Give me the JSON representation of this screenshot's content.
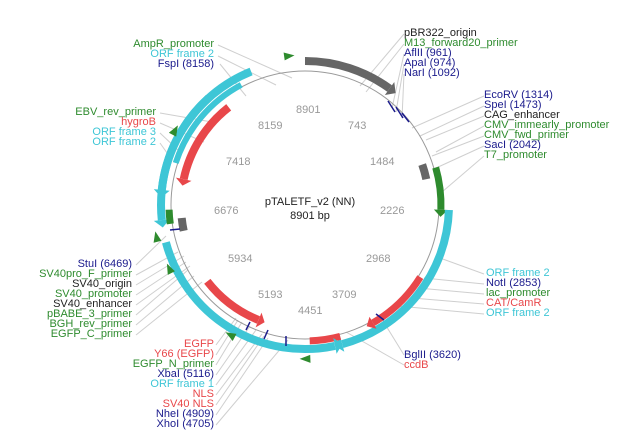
{
  "plasmid": {
    "name": "pTALETF_v2 (NN)",
    "length_label": "8901 bp",
    "total_bp": 8901
  },
  "colors": {
    "enzyme": "#1a1a8c",
    "primer": "#2e8b2e",
    "promoter": "#2e8b2e",
    "orf": "#3ec6d6",
    "gene": "#e8474a",
    "origin": "#222222",
    "tick": "#999999"
  },
  "ticks": [
    "743",
    "1484",
    "2226",
    "2968",
    "3709",
    "4451",
    "5193",
    "5934",
    "6676",
    "7418",
    "8159",
    "8901"
  ],
  "labels_top_left": [
    {
      "text": "AmpR_promoter",
      "kind": "promoter"
    },
    {
      "text": "ORF frame 2",
      "kind": "orf"
    },
    {
      "text": "FspI (8158)",
      "kind": "enzyme"
    }
  ],
  "labels_top_right": [
    {
      "text": "pBR322_origin",
      "kind": "origin"
    },
    {
      "text": "M13_forward20_primer",
      "kind": "primer"
    },
    {
      "text": "AflII (961)",
      "kind": "enzyme"
    },
    {
      "text": "ApaI (974)",
      "kind": "enzyme"
    },
    {
      "text": "NarI (1092)",
      "kind": "enzyme"
    }
  ],
  "labels_right": [
    {
      "text": "EcoRV (1314)",
      "kind": "enzyme"
    },
    {
      "text": "SpeI (1473)",
      "kind": "enzyme"
    },
    {
      "text": "CAG_enhancer",
      "kind": "origin"
    },
    {
      "text": "CMV_immearly_promoter",
      "kind": "promoter"
    },
    {
      "text": "CMV_fwd_primer",
      "kind": "primer"
    },
    {
      "text": "SacI (2042)",
      "kind": "enzyme"
    },
    {
      "text": "T7_promoter",
      "kind": "promoter"
    }
  ],
  "labels_left_upper": [
    {
      "text": "EBV_rev_primer",
      "kind": "primer"
    },
    {
      "text": "hygroB",
      "kind": "gene"
    },
    {
      "text": "ORF frame 3",
      "kind": "orf"
    },
    {
      "text": "ORF frame 2",
      "kind": "orf"
    }
  ],
  "labels_right_lower": [
    {
      "text": "ORF frame 2",
      "kind": "orf"
    },
    {
      "text": "NotI (2853)",
      "kind": "enzyme"
    },
    {
      "text": "lac_promoter",
      "kind": "promoter"
    },
    {
      "text": "CAT/CamR",
      "kind": "gene"
    },
    {
      "text": "ORF frame 2",
      "kind": "orf"
    }
  ],
  "labels_left_lower": [
    {
      "text": "StuI (6469)",
      "kind": "enzyme"
    },
    {
      "text": "SV40pro_F_primer",
      "kind": "primer"
    },
    {
      "text": "SV40_origin",
      "kind": "origin"
    },
    {
      "text": "SV40_promoter",
      "kind": "promoter"
    },
    {
      "text": "SV40_enhancer",
      "kind": "origin"
    },
    {
      "text": "pBABE_3_primer",
      "kind": "primer"
    },
    {
      "text": "BGH_rev_primer",
      "kind": "primer"
    },
    {
      "text": "EGFP_C_primer",
      "kind": "primer"
    }
  ],
  "labels_bottom": [
    {
      "text": "EGFP",
      "kind": "gene"
    },
    {
      "text": "Y66 (EGFP)",
      "kind": "gene"
    },
    {
      "text": "EGFP_N_primer",
      "kind": "primer"
    },
    {
      "text": "XbaI (5116)",
      "kind": "enzyme"
    },
    {
      "text": "ORF frame 1",
      "kind": "orf"
    },
    {
      "text": "NLS",
      "kind": "gene"
    },
    {
      "text": "SV40 NLS",
      "kind": "gene"
    },
    {
      "text": "NheI (4909)",
      "kind": "enzyme"
    },
    {
      "text": "XhoI (4705)",
      "kind": "enzyme"
    }
  ],
  "labels_bottom_right": [
    {
      "text": "BglII (3620)",
      "kind": "enzyme"
    },
    {
      "text": "ccdB",
      "kind": "gene"
    }
  ]
}
